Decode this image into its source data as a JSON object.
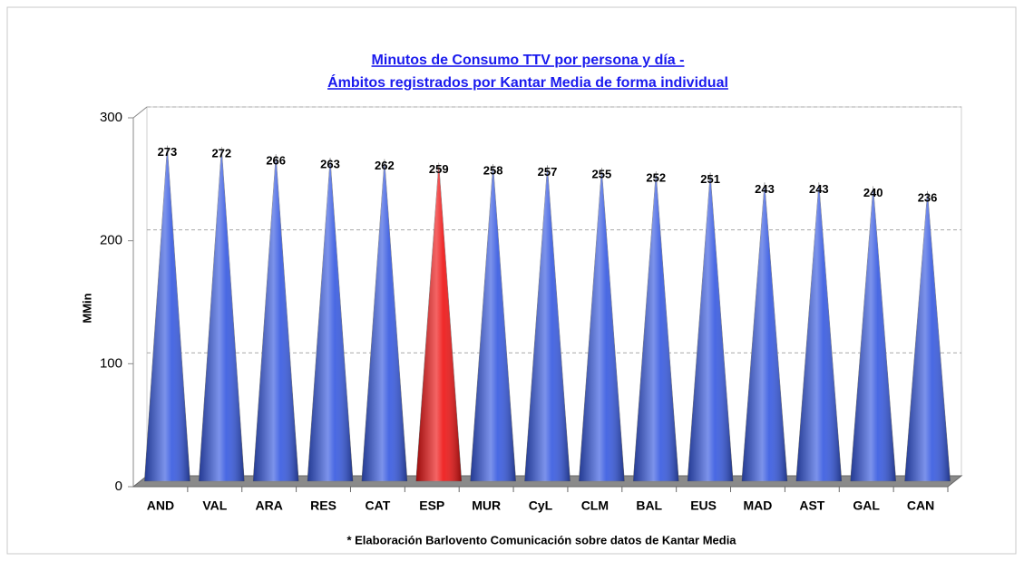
{
  "chart_data": {
    "type": "cone",
    "title": [
      "Minutos de Consumo TTV por persona y día -",
      "Ámbitos registrados por Kantar Media de forma individual"
    ],
    "y_label": "MMin",
    "note": "* Elaboración Barlovento Comunicación sobre datos de Kantar Media",
    "categories": [
      "AND",
      "VAL",
      "ARA",
      "RES",
      "CAT",
      "ESP",
      "MUR",
      "CyL",
      "CLM",
      "BAL",
      "EUS",
      "MAD",
      "AST",
      "GAL",
      "CAN"
    ],
    "values": [
      273,
      272,
      266,
      263,
      262,
      259,
      258,
      257,
      255,
      252,
      251,
      243,
      243,
      240,
      236
    ],
    "colors": [
      "#3558e0",
      "#3558e0",
      "#3558e0",
      "#3558e0",
      "#3558e0",
      "#ee1111",
      "#3558e0",
      "#3558e0",
      "#3558e0",
      "#3558e0",
      "#3558e0",
      "#3558e0",
      "#3558e0",
      "#3558e0",
      "#3558e0"
    ],
    "ylim": [
      0,
      300
    ],
    "yticks": [
      0,
      100,
      200,
      300
    ],
    "grid": true
  }
}
